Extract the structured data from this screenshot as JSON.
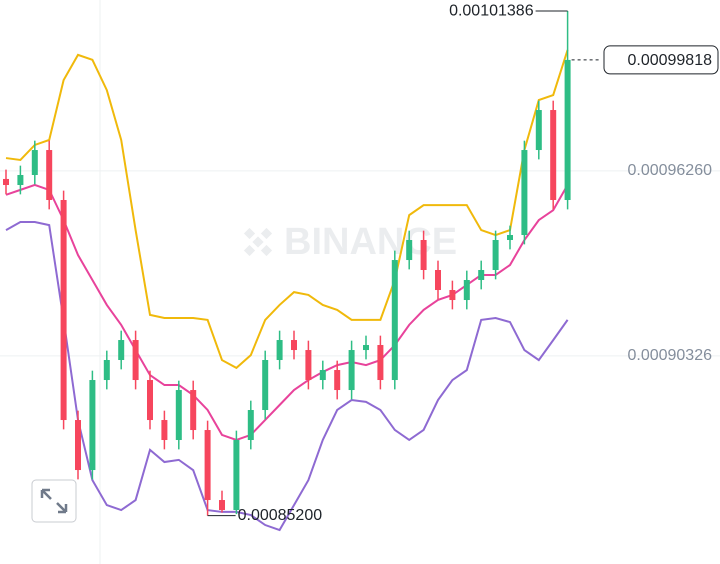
{
  "chart_data": {
    "type": "candlestick",
    "watermark": "BINANCE",
    "up_color": "#2ebd85",
    "down_color": "#f6465d",
    "open": [
      0.00096,
      0.00095806,
      0.00096127,
      0.00096928,
      0.00095325,
      0.00088268,
      0.00086664,
      0.00089551,
      0.00090193,
      0.00090834,
      0.00089551,
      0.00088268,
      0.00087627,
      0.0008923,
      0.00087947,
      0.00085702,
      0.00085381,
      0.00087627,
      0.00088589,
      0.00090193,
      0.00090834,
      0.00090513,
      0.00089551,
      0.00089872,
      0.0008923,
      0.00090513,
      0.00090674,
      0.00089551,
      0.000934,
      0.00094042,
      0.0009308,
      0.00092438,
      0.00092117,
      0.00092759,
      0.0009308,
      0.00094042,
      0.00094202,
      0.00096928,
      0.00098211,
      0.00095325
    ],
    "high": [
      0.000963,
      0.00096427,
      0.00097228,
      0.00097228,
      0.00095625,
      0.00088568,
      0.00089851,
      0.00090493,
      0.00091134,
      0.00091134,
      0.00089851,
      0.00088568,
      0.0008953,
      0.0008953,
      0.00088247,
      0.00086002,
      0.00087927,
      0.00088889,
      0.00090493,
      0.00091134,
      0.00091134,
      0.00090813,
      0.00090172,
      0.00090172,
      0.00090813,
      0.00090974,
      0.00090974,
      0.000937,
      0.00094342,
      0.00094342,
      0.0009338,
      0.00092738,
      0.00093059,
      0.0009338,
      0.00094342,
      0.00094502,
      0.00097228,
      0.00098511,
      0.00098511,
      0.00101386
    ],
    "low": [
      0.00095506,
      0.00095506,
      0.00095827,
      0.00095025,
      0.00087968,
      0.00086364,
      0.00086364,
      0.00089251,
      0.00089893,
      0.00089251,
      0.00087968,
      0.00087327,
      0.00087327,
      0.00087647,
      0.000852,
      0.000853,
      0.0008525,
      0.00087327,
      0.00088289,
      0.00089893,
      0.00090213,
      0.00089251,
      0.00089251,
      0.0008893,
      0.0008893,
      0.00090213,
      0.00089251,
      0.00089251,
      0.000931,
      0.0009278,
      0.00092138,
      0.00091817,
      0.00091817,
      0.00092459,
      0.0009278,
      0.00093742,
      0.00093902,
      0.00096628,
      0.00095025,
      0.00095025
    ],
    "close": [
      0.00095806,
      0.00096127,
      0.00096928,
      0.00095325,
      0.00088268,
      0.00086664,
      0.00089551,
      0.00090193,
      0.00090834,
      0.00089551,
      0.00088268,
      0.00087627,
      0.0008923,
      0.00087947,
      0.00085702,
      0.00085381,
      0.00087627,
      0.00088589,
      0.00090193,
      0.00090834,
      0.00090513,
      0.00089551,
      0.00089872,
      0.0008923,
      0.00090513,
      0.00090674,
      0.00089551,
      0.000934,
      0.00094042,
      0.0009308,
      0.00092438,
      0.00092117,
      0.00092759,
      0.0009308,
      0.00094042,
      0.00094202,
      0.00096928,
      0.00098211,
      0.00095325,
      0.00099818
    ],
    "overlays": [
      {
        "color": "#f0b90b",
        "values": [
          0.0009667,
          0.0009661,
          0.0009709,
          0.0009725,
          0.0009917,
          0.0009998,
          0.0009982,
          0.0009885,
          0.0009725,
          0.0009436,
          0.0009164,
          0.0009154,
          0.0009154,
          0.0009154,
          0.0009148,
          0.0009019,
          0.0008994,
          0.0009035,
          0.0009148,
          0.0009196,
          0.0009237,
          0.0009228,
          0.0009196,
          0.000918,
          0.0009148,
          0.0009148,
          0.0009148,
          0.0009276,
          0.0009484,
          0.0009516,
          0.0009516,
          0.0009516,
          0.0009516,
          0.0009436,
          0.000942,
          0.0009436,
          0.0009693,
          0.0009853,
          0.0009869,
          0.0010014
        ]
      },
      {
        "color": "#e8439b",
        "values": [
          0.0009549,
          0.0009565,
          0.0009581,
          0.0009565,
          0.0009468,
          0.0009356,
          0.0009276,
          0.0009196,
          0.0009132,
          0.0009051,
          0.0008971,
          0.0008939,
          0.0008939,
          0.0008907,
          0.0008859,
          0.0008779,
          0.0008763,
          0.0008779,
          0.0008827,
          0.0008875,
          0.0008923,
          0.0008955,
          0.0008981,
          0.0009003,
          0.0009013,
          0.0009003,
          0.0009019,
          0.0009067,
          0.0009132,
          0.000918,
          0.0009212,
          0.0009228,
          0.000926,
          0.0009292,
          0.0009292,
          0.0009324,
          0.0009404,
          0.0009468,
          0.00095,
          0.0009581
        ]
      },
      {
        "color": "#8e6ad2",
        "values": [
          0.0009436,
          0.0009462,
          0.0009462,
          0.0009452,
          0.0009148,
          0.0008827,
          0.0008634,
          0.0008554,
          0.0008538,
          0.000857,
          0.0008731,
          0.0008692,
          0.0008699,
          0.0008666,
          0.0008538,
          0.0008532,
          0.0008532,
          0.0008522,
          0.000849,
          0.0008474,
          0.0008554,
          0.0008634,
          0.0008763,
          0.0008859,
          0.0008891,
          0.0008885,
          0.0008859,
          0.0008795,
          0.0008763,
          0.0008795,
          0.0008891,
          0.0008955,
          0.0008987,
          0.0009148,
          0.0009154,
          0.0009141,
          0.0009051,
          0.0009019,
          0.0009083,
          0.0009148
        ]
      }
    ],
    "low_label": "0.00085200",
    "ylim": [
      0.0008365,
      0.0010174
    ],
    "yticks": [
      {
        "value": 0.0009626,
        "label": "0.00096260"
      },
      {
        "value": 0.00090326,
        "label": "0.00090326"
      }
    ],
    "grid": true
  }
}
